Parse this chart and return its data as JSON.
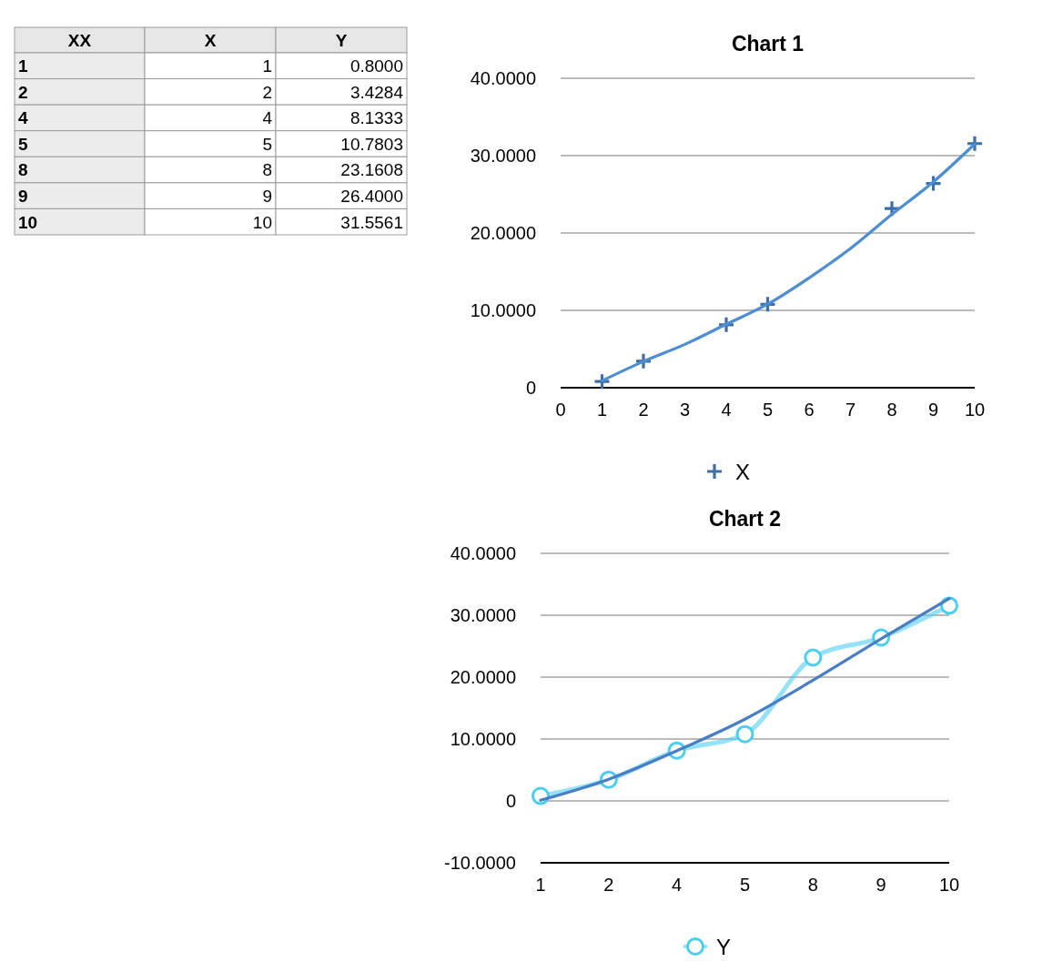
{
  "chart_data": [
    {
      "type": "other",
      "xlabel": "XX",
      "categories": [
        "1",
        "2",
        "4",
        "5",
        "8",
        "9",
        "10"
      ],
      "series": [
        {
          "name": "X",
          "values": [
            1,
            2,
            4,
            5,
            8,
            9,
            10
          ],
          "value_labels": [
            "1",
            "2",
            "4",
            "5",
            "8",
            "9",
            "10"
          ]
        },
        {
          "name": "Y",
          "values": [
            0.8,
            3.4284,
            8.1333,
            10.7803,
            23.1608,
            26.4,
            31.5561
          ],
          "value_labels": [
            "0.8000",
            "3.4284",
            "8.1333",
            "10.7803",
            "23.1608",
            "26.4000",
            "31.5561"
          ]
        }
      ]
    },
    {
      "type": "scatter",
      "title": "Chart 1",
      "x": [
        1,
        2,
        4,
        5,
        8,
        9,
        10
      ],
      "xlim": [
        0,
        10
      ],
      "xticks": [
        0,
        1,
        2,
        3,
        4,
        5,
        6,
        7,
        8,
        9,
        10
      ],
      "ylim": [
        0,
        40
      ],
      "yticks": [
        0,
        {
          "value": 10,
          "label": "10.0000"
        },
        {
          "value": 20,
          "label": "20.0000"
        },
        {
          "value": 30,
          "label": "30.0000"
        },
        {
          "value": 40,
          "label": "40.0000"
        }
      ],
      "grid": "y",
      "legend": "bottom",
      "series": [
        {
          "name": "X",
          "type": "scatter",
          "marker": "cross",
          "color": "#3e6ea6",
          "values": [
            0.8,
            3.4284,
            8.1333,
            10.7803,
            23.1608,
            26.4,
            31.5561
          ]
        },
        {
          "type": "line",
          "marker": "none",
          "color": "#4d8dd2",
          "x": [
            1,
            2,
            3,
            4,
            5,
            6,
            7,
            8,
            9,
            10
          ],
          "values": [
            0.9,
            3.4,
            5.6,
            8.2,
            10.8,
            14.2,
            18.0,
            22.4,
            26.6,
            31.5
          ]
        }
      ]
    },
    {
      "type": "line",
      "title": "Chart 2",
      "categories": [
        "1",
        "2",
        "4",
        "5",
        "8",
        "9",
        "10"
      ],
      "ylim": [
        -10,
        40
      ],
      "yticks": [
        {
          "value": -10,
          "label": "-10.0000"
        },
        0,
        {
          "value": 10,
          "label": "10.0000"
        },
        {
          "value": 20,
          "label": "20.0000"
        },
        {
          "value": 30,
          "label": "30.0000"
        },
        {
          "value": 40,
          "label": "40.0000"
        }
      ],
      "grid": "y",
      "legend": "bottom",
      "series": [
        {
          "name": "Y",
          "type": "line",
          "marker": "circle",
          "color": "#4ccdf3",
          "values": [
            0.8,
            3.4284,
            8.1333,
            10.7803,
            23.1608,
            26.4,
            31.5561
          ]
        },
        {
          "type": "line",
          "marker": "none",
          "color": "#4a7ec4",
          "values": [
            0.1,
            3.5,
            8.1,
            13.2,
            19.5,
            26.2,
            32.7
          ]
        }
      ]
    }
  ]
}
